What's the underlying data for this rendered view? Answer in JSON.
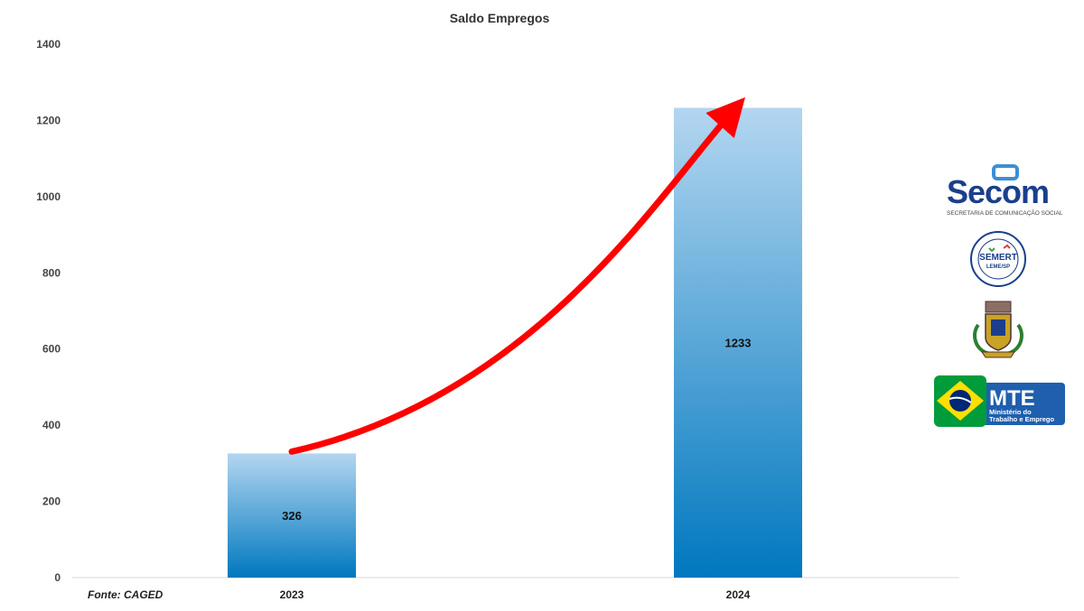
{
  "chart_data": {
    "type": "bar",
    "title": "Saldo Empregos",
    "categories": [
      "2023",
      "2024"
    ],
    "values": [
      326,
      1233
    ],
    "data_labels": [
      "326",
      "1233"
    ],
    "ylim": [
      0,
      1400
    ],
    "yticks": [
      "0",
      "200",
      "400",
      "600",
      "800",
      "1000",
      "1200",
      "1400"
    ],
    "grid": false,
    "legend": "none",
    "bar_gradient": [
      "#b3d6f0",
      "#0078bf"
    ],
    "arrow_color": "#ff0000",
    "annotation": "trend arrow from 2023 bar to 2024 bar"
  },
  "source": "Fonte: CAGED",
  "logos": {
    "secom": {
      "word": "Secom",
      "subtitle": "SECRETARIA DE COMUNICAÇÃO SOCIAL",
      "icon": "speech-bubble-icon"
    },
    "semert": {
      "word": "SEMERT",
      "sub": "LEME/SP",
      "icon": "semert-seal-icon"
    },
    "brasao": {
      "icon": "municipal-coat-of-arms-icon"
    },
    "mte": {
      "word": "MTE",
      "line1": "Ministério do",
      "line2": "Trabalho e Emprego",
      "icon": "brazil-flag-icon"
    }
  }
}
